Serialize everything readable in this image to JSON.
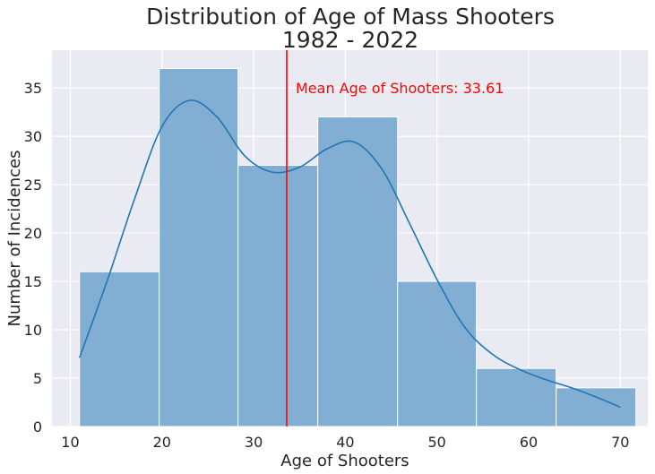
{
  "chart_data": {
    "type": "bar",
    "title_lines": [
      "Distribution of Age of Mass Shooters",
      "1982 - 2022"
    ],
    "xlabel": "Age of Shooters",
    "ylabel": "Number of Incidences",
    "xlim": [
      8.0,
      73.0
    ],
    "ylim": [
      0,
      38.9
    ],
    "xticks": [
      10,
      20,
      30,
      40,
      50,
      60,
      70
    ],
    "yticks": [
      0,
      5,
      10,
      15,
      20,
      25,
      30,
      35
    ],
    "bins": [
      {
        "x0": 11.0,
        "x1": 19.7,
        "count": 16
      },
      {
        "x0": 19.7,
        "x1": 28.3,
        "count": 37
      },
      {
        "x0": 28.3,
        "x1": 37.0,
        "count": 27
      },
      {
        "x0": 37.0,
        "x1": 45.7,
        "count": 32
      },
      {
        "x0": 45.7,
        "x1": 54.3,
        "count": 15
      },
      {
        "x0": 54.3,
        "x1": 63.0,
        "count": 6
      },
      {
        "x0": 63.0,
        "x1": 71.7,
        "count": 4
      }
    ],
    "kde": {
      "x": [
        11,
        14,
        17,
        20,
        23,
        26,
        29,
        32,
        35,
        38,
        41,
        44,
        47,
        50,
        53,
        56,
        59,
        62,
        65,
        68,
        70
      ],
      "y": [
        7.1,
        15.0,
        23.5,
        31.0,
        33.7,
        32.0,
        28.0,
        26.3,
        26.8,
        28.7,
        29.4,
        26.6,
        21.0,
        15.2,
        10.3,
        7.5,
        5.9,
        4.8,
        3.9,
        2.8,
        2.0
      ]
    },
    "mean_line": {
      "x": 33.61,
      "label": "Mean Age of Shooters: 33.61",
      "color": "#ff0000"
    },
    "colors": {
      "bar_fill": "#82aed3",
      "bar_edge": "#ffffff",
      "kde_line": "#1f77b4",
      "plot_bg": "#eaeaf2",
      "grid": "#ffffff"
    },
    "grid": true,
    "legend": "none"
  }
}
